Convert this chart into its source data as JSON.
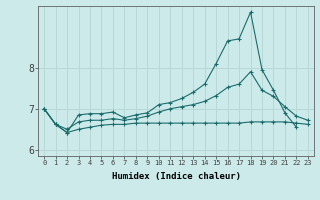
{
  "xlabel": "Humidex (Indice chaleur)",
  "bg_color": "#cdeaea",
  "grid_color": "#b8d8d8",
  "line_color": "#1a6b6b",
  "xlim": [
    -0.5,
    23.5
  ],
  "ylim": [
    5.85,
    9.5
  ],
  "xticks": [
    0,
    1,
    2,
    3,
    4,
    5,
    6,
    7,
    8,
    9,
    10,
    11,
    12,
    13,
    14,
    15,
    16,
    17,
    18,
    19,
    20,
    21,
    22,
    23
  ],
  "yticks": [
    6,
    7,
    8
  ],
  "line1_x": [
    0,
    1,
    2,
    3,
    4,
    5,
    6,
    7,
    8,
    9,
    10,
    11,
    12,
    13,
    14,
    15,
    16,
    17,
    18,
    19,
    20,
    21,
    22,
    23
  ],
  "line1_y": [
    7.0,
    6.62,
    6.42,
    6.85,
    6.88,
    6.88,
    6.92,
    6.78,
    6.85,
    6.9,
    7.1,
    7.15,
    7.25,
    7.4,
    7.6,
    8.1,
    8.65,
    8.7,
    9.35,
    7.95,
    7.45,
    6.9,
    6.55,
    null
  ],
  "line2_x": [
    0,
    1,
    2,
    3,
    4,
    5,
    6,
    7,
    8,
    9,
    10,
    11,
    12,
    13,
    14,
    15,
    16,
    17,
    18,
    19,
    20,
    21,
    22,
    23
  ],
  "line2_y": [
    7.0,
    6.62,
    6.5,
    6.68,
    6.72,
    6.72,
    6.76,
    6.72,
    6.76,
    6.82,
    6.92,
    7.0,
    7.05,
    7.1,
    7.18,
    7.32,
    7.52,
    7.6,
    7.9,
    7.45,
    7.3,
    7.05,
    6.82,
    6.72
  ],
  "line3_x": [
    0,
    1,
    2,
    3,
    4,
    5,
    6,
    7,
    8,
    9,
    10,
    11,
    12,
    13,
    14,
    15,
    16,
    17,
    18,
    19,
    20,
    21,
    22,
    23
  ],
  "line3_y": [
    7.0,
    6.62,
    6.42,
    6.5,
    6.55,
    6.6,
    6.62,
    6.62,
    6.65,
    6.65,
    6.65,
    6.65,
    6.65,
    6.65,
    6.65,
    6.65,
    6.65,
    6.65,
    6.68,
    6.68,
    6.68,
    6.68,
    6.65,
    6.62
  ]
}
